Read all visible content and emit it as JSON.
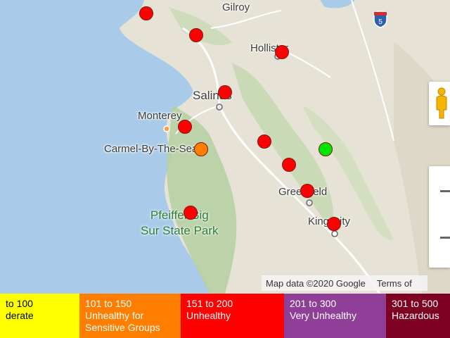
{
  "map": {
    "places": [
      {
        "name": "Gilroy"
      },
      {
        "name": "Hollister"
      },
      {
        "name": "Salinas"
      },
      {
        "name": "Monterey"
      },
      {
        "name": "Carmel-By-The-Sea"
      },
      {
        "name": "Greenfield"
      },
      {
        "name": "King City"
      }
    ],
    "park_label": {
      "line1": "Pfeiffer Big",
      "line2": "Sur State Park"
    },
    "highway_shield": "5",
    "attribution": {
      "map_data": "Map data ©2020 Google",
      "terms": "Terms of"
    },
    "markers": [
      {
        "category": "Unhealthy",
        "color": "#ff0000"
      },
      {
        "category": "Unhealthy",
        "color": "#ff0000"
      },
      {
        "category": "Unhealthy",
        "color": "#ff0000"
      },
      {
        "category": "Unhealthy",
        "color": "#ff0000"
      },
      {
        "category": "Unhealthy",
        "color": "#ff0000"
      },
      {
        "category": "Unhealthy for Sensitive Groups",
        "color": "#ff7e00"
      },
      {
        "category": "Unhealthy",
        "color": "#ff0000"
      },
      {
        "category": "Good",
        "color": "#00e400"
      },
      {
        "category": "Unhealthy",
        "color": "#ff0000"
      },
      {
        "category": "Unhealthy",
        "color": "#ff0000"
      },
      {
        "category": "Unhealthy",
        "color": "#ff0000"
      },
      {
        "category": "Unhealthy",
        "color": "#ff0000"
      }
    ],
    "controls": {
      "pegman_icon": "pegman-icon",
      "zoom_in_icon": "plus-icon",
      "zoom_out_icon": "minus-icon"
    }
  },
  "legend": [
    {
      "range": "to 100",
      "label": "derate",
      "bg": "#ffff00",
      "fg": "#000000"
    },
    {
      "range": "101 to 150",
      "label": "Unhealthy for",
      "label2": "Sensitive Groups",
      "bg": "#ff7e00",
      "fg": "#ffffff"
    },
    {
      "range": "151 to 200",
      "label": "Unhealthy",
      "bg": "#ff0000",
      "fg": "#ffffff"
    },
    {
      "range": "201 to 300",
      "label": "Very Unhealthy",
      "bg": "#8f3f97",
      "fg": "#ffffff"
    },
    {
      "range": "301 to 500",
      "label": "Hazardous",
      "bg": "#7e0023",
      "fg": "#ffffff"
    }
  ]
}
